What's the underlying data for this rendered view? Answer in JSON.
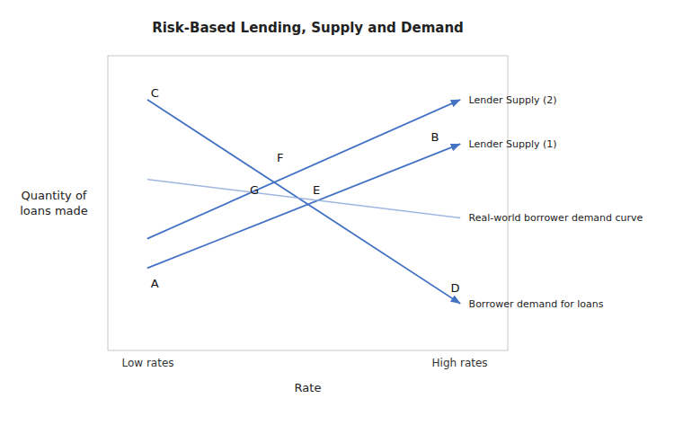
{
  "chart_data": {
    "type": "line",
    "title": "Risk-Based Lending, Supply and Demand",
    "xlabel": "Rate",
    "ylabel": [
      "Quantity of",
      "loans made"
    ],
    "xlim": [
      0,
      10
    ],
    "ylim": [
      0,
      10
    ],
    "xticks": [
      {
        "value": 1.0,
        "label": "Low rates"
      },
      {
        "value": 8.8,
        "label": "High rates"
      }
    ],
    "yticks": [],
    "grid": false,
    "tick_labels": "x",
    "series": [
      {
        "name": "Lender Supply (1)",
        "color": "#4472C4",
        "marker": "arrow",
        "x": [
          1.0,
          8.8
        ],
        "values": [
          2.8,
          7.0
        ]
      },
      {
        "name": "Lender Supply (2)",
        "color": "#4472C4",
        "marker": "arrow",
        "x": [
          1.0,
          8.8
        ],
        "values": [
          3.8,
          8.5
        ]
      },
      {
        "name": "Borrower demand for loans",
        "color": "#4472C4",
        "marker": "arrow",
        "x": [
          1.0,
          8.8
        ],
        "values": [
          8.5,
          1.6
        ]
      },
      {
        "name": "Real-world borrower demand curve",
        "color": "#8eaadb",
        "x": [
          1.0,
          8.8
        ],
        "values": [
          5.8,
          4.5
        ]
      }
    ],
    "annotations": [
      {
        "text": "A",
        "x": 1.05,
        "y": 2.5
      },
      {
        "text": "B",
        "x": 8.3,
        "y": 7.0
      },
      {
        "text": "C",
        "x": 1.05,
        "y": 8.5
      },
      {
        "text": "D",
        "x": 8.55,
        "y": 1.9
      },
      {
        "text": "E",
        "x": 5.1,
        "y": 5.2
      },
      {
        "text": "F",
        "x": 4.2,
        "y": 6.3
      },
      {
        "text": "G",
        "x": 3.8,
        "y": 5.2
      }
    ]
  }
}
